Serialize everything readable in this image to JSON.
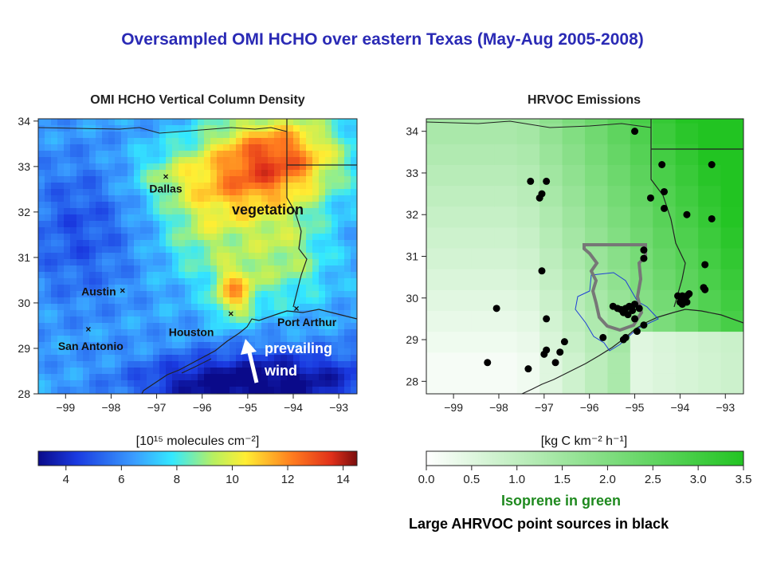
{
  "slide_title": "Oversampled OMI HCHO over eastern Texas (May-Aug 2005-2008)",
  "colors": {
    "title": "#2a2ab5",
    "isoprene_note": "#1f8a1f",
    "wind_arrow": "#ffffff",
    "wind_text": "#ffffff",
    "ahrvoc_points": "#000000",
    "houston_outline_gray": "#777777",
    "houston_outline_blue": "#1f3fd6",
    "green_max": "#22c422"
  },
  "left_map": {
    "title": "OMI HCHO Vertical Column Density",
    "x_ticks": [
      "−99",
      "−98",
      "−97",
      "−96",
      "−95",
      "−94",
      "−93"
    ],
    "y_ticks": [
      "28",
      "29",
      "30",
      "31",
      "32",
      "33",
      "34"
    ],
    "cities": [
      {
        "name": "Dallas",
        "lon": -96.8,
        "lat": 32.78
      },
      {
        "name": "Austin",
        "lon": -97.75,
        "lat": 30.27
      },
      {
        "name": "San Antonio",
        "lon": -98.5,
        "lat": 29.42
      },
      {
        "name": "Houston",
        "lon": -95.37,
        "lat": 29.76
      },
      {
        "name": "Port Arthur",
        "lon": -93.93,
        "lat": 29.88
      }
    ],
    "annotations": {
      "vegetation": "vegetation",
      "wind_line1": "prevailing",
      "wind_line2": "wind"
    },
    "colorbar": {
      "label": "[10¹⁵ molecules cm⁻²]",
      "ticks": [
        "4",
        "6",
        "8",
        "10",
        "12",
        "14"
      ],
      "tick_values": [
        4,
        6,
        8,
        10,
        12,
        14
      ],
      "range": [
        3,
        14.5
      ]
    }
  },
  "right_map": {
    "title": "HRVOC Emissions",
    "x_ticks": [
      "−99",
      "−98",
      "−97",
      "−96",
      "−95",
      "−94",
      "−93"
    ],
    "y_ticks": [
      "28",
      "29",
      "30",
      "31",
      "32",
      "33",
      "34"
    ],
    "colorbar": {
      "label": "[kg C km⁻² h⁻¹]",
      "ticks": [
        "0.0",
        "0.5",
        "1.0",
        "1.5",
        "2.0",
        "2.5",
        "3.0",
        "3.5"
      ],
      "tick_values": [
        0,
        0.5,
        1,
        1.5,
        2,
        2.5,
        3,
        3.5
      ],
      "range": [
        0,
        3.5
      ]
    },
    "point_sources": [
      [
        -95.0,
        34.0
      ],
      [
        -93.3,
        33.2
      ],
      [
        -97.3,
        32.8
      ],
      [
        -96.95,
        32.8
      ],
      [
        -97.05,
        32.5
      ],
      [
        -97.1,
        32.4
      ],
      [
        -94.4,
        33.2
      ],
      [
        -94.65,
        32.4
      ],
      [
        -94.35,
        32.55
      ],
      [
        -94.35,
        32.15
      ],
      [
        -93.85,
        32.0
      ],
      [
        -93.3,
        31.9
      ],
      [
        -97.05,
        30.65
      ],
      [
        -94.8,
        31.15
      ],
      [
        -94.8,
        30.95
      ],
      [
        -93.45,
        30.8
      ],
      [
        -93.45,
        30.2
      ],
      [
        -93.48,
        30.25
      ],
      [
        -98.05,
        29.75
      ],
      [
        -96.95,
        29.5
      ],
      [
        -95.48,
        29.8
      ],
      [
        -95.38,
        29.75
      ],
      [
        -95.3,
        29.72
      ],
      [
        -95.2,
        29.75
      ],
      [
        -95.12,
        29.8
      ],
      [
        -95.25,
        29.65
      ],
      [
        -95.15,
        29.6
      ],
      [
        -95.05,
        29.7
      ],
      [
        -95.0,
        29.85
      ],
      [
        -94.9,
        29.75
      ],
      [
        -94.05,
        30.05
      ],
      [
        -94.0,
        29.9
      ],
      [
        -93.9,
        29.95
      ],
      [
        -93.85,
        30.05
      ],
      [
        -93.95,
        30.05
      ],
      [
        -93.8,
        30.1
      ],
      [
        -93.95,
        29.85
      ],
      [
        -93.85,
        29.9
      ],
      [
        -94.8,
        29.35
      ],
      [
        -94.95,
        29.2
      ],
      [
        -95.2,
        29.05
      ],
      [
        -95.25,
        29.0
      ],
      [
        -95.0,
        29.5
      ],
      [
        -95.7,
        29.05
      ],
      [
        -96.55,
        28.95
      ],
      [
        -96.95,
        28.75
      ],
      [
        -97.0,
        28.65
      ],
      [
        -96.65,
        28.7
      ],
      [
        -96.75,
        28.45
      ],
      [
        -97.35,
        28.3
      ],
      [
        -98.25,
        28.45
      ]
    ]
  }
}
